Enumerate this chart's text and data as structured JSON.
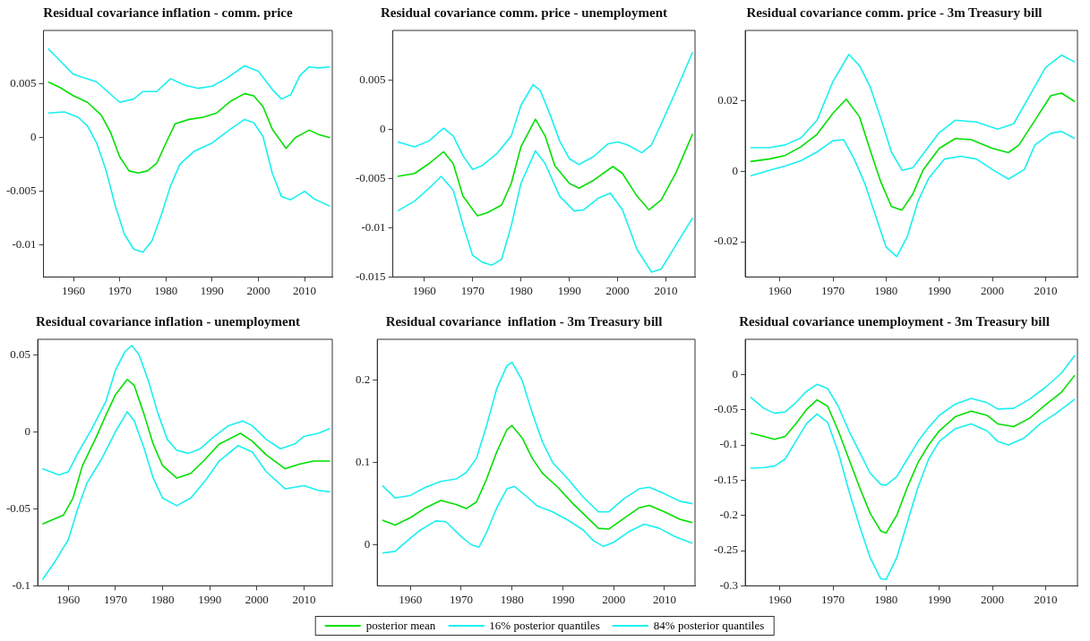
{
  "chart_data": [
    {
      "type": "line",
      "title": "Residual covariance inflation - comm. price",
      "xlim": [
        1953.5,
        2016
      ],
      "xticks": [
        1960,
        1970,
        1980,
        1990,
        2000,
        2010
      ],
      "ylim": [
        -0.013,
        0.01
      ],
      "yticks": [
        -0.01,
        -0.005,
        0,
        0.005
      ],
      "grid": false,
      "marker": "none",
      "line_style": "solid",
      "legend": "bottom",
      "series": [
        {
          "name": "posterior mean",
          "color": "#00e000",
          "x": [
            1954.5,
            1957,
            1960,
            1963,
            1966,
            1968,
            1970,
            1972,
            1974,
            1976,
            1978,
            1980,
            1982,
            1985,
            1988,
            1991,
            1994,
            1997,
            1999,
            2001,
            2003,
            2006,
            2008,
            2011,
            2013,
            2015.5
          ],
          "values": [
            0.0052,
            0.0047,
            0.0039,
            0.0033,
            0.0021,
            0.0005,
            -0.0018,
            -0.0031,
            -0.0033,
            -0.0031,
            -0.0024,
            -0.0005,
            0.0013,
            0.0017,
            0.0019,
            0.0023,
            0.0034,
            0.0041,
            0.0039,
            0.0029,
            0.0008,
            -0.001,
            0,
            0.0007,
            0.0003,
            0
          ]
        },
        {
          "name": "16% posterior quantiles",
          "color": "#19f0f0",
          "x": [
            1954.5,
            1958,
            1961,
            1963,
            1965,
            1967,
            1969,
            1971,
            1973,
            1975,
            1977,
            1979,
            1981,
            1983,
            1986,
            1990,
            1994,
            1997,
            1999,
            2001,
            2003,
            2005,
            2007,
            2010,
            2012,
            2015.5
          ],
          "values": [
            0.0023,
            0.0024,
            0.0019,
            0.0011,
            -0.0005,
            -0.003,
            -0.0063,
            -0.009,
            -0.0104,
            -0.0107,
            -0.0096,
            -0.0072,
            -0.0045,
            -0.0025,
            -0.0013,
            -0.0005,
            0.0008,
            0.0017,
            0.0014,
            0.0001,
            -0.0033,
            -0.0055,
            -0.0058,
            -0.005,
            -0.0057,
            -0.0064
          ]
        },
        {
          "name": "84% posterior quantiles",
          "color": "#19f0f0",
          "x": [
            1954.5,
            1957,
            1960,
            1965,
            1970,
            1973,
            1975,
            1978,
            1981,
            1984,
            1987,
            1990,
            1993,
            1997,
            2000,
            2003,
            2005,
            2007,
            2009,
            2011,
            2013,
            2015.5
          ],
          "values": [
            0.0083,
            0.0072,
            0.0059,
            0.0052,
            0.0033,
            0.0036,
            0.0043,
            0.0043,
            0.0055,
            0.0049,
            0.0046,
            0.0048,
            0.0055,
            0.0067,
            0.0062,
            0.0045,
            0.0036,
            0.004,
            0.0058,
            0.0066,
            0.0065,
            0.0066
          ]
        }
      ]
    },
    {
      "type": "line",
      "title": "Residual covariance comm. price - unemployment",
      "xlim": [
        1953.5,
        2016
      ],
      "xticks": [
        1960,
        1970,
        1980,
        1990,
        2000,
        2010
      ],
      "ylim": [
        -0.015,
        0.01
      ],
      "yticks": [
        -0.015,
        -0.01,
        -0.005,
        0,
        0.005
      ],
      "grid": false,
      "marker": "none",
      "line_style": "solid",
      "series": [
        {
          "color": "#00e000",
          "x": [
            1954.5,
            1958,
            1961,
            1964,
            1966,
            1968,
            1971,
            1973,
            1976,
            1978,
            1980,
            1983,
            1985,
            1987,
            1990,
            1992,
            1995,
            1999,
            2001,
            2004,
            2006.5,
            2009,
            2012,
            2015.5
          ],
          "values": [
            -0.0048,
            -0.0045,
            -0.0035,
            -0.0023,
            -0.0035,
            -0.0068,
            -0.0088,
            -0.0085,
            -0.0077,
            -0.0055,
            -0.0018,
            0.001,
            -0.0007,
            -0.0037,
            -0.0055,
            -0.006,
            -0.0052,
            -0.0038,
            -0.0045,
            -0.0068,
            -0.0082,
            -0.0072,
            -0.0045,
            -0.0005
          ]
        },
        {
          "color": "#19f0f0",
          "x": [
            1954.5,
            1958,
            1961,
            1963.5,
            1966,
            1968,
            1970,
            1972,
            1974,
            1976,
            1978,
            1980,
            1983,
            1985,
            1988,
            1991,
            1993,
            1996,
            1998.5,
            2001,
            2004,
            2007,
            2009,
            2012,
            2015.5
          ],
          "values": [
            -0.0083,
            -0.0073,
            -0.006,
            -0.0048,
            -0.0062,
            -0.0097,
            -0.0128,
            -0.0135,
            -0.0138,
            -0.0132,
            -0.0098,
            -0.0055,
            -0.0022,
            -0.0035,
            -0.0068,
            -0.0083,
            -0.0082,
            -0.007,
            -0.0065,
            -0.0082,
            -0.0122,
            -0.0145,
            -0.0142,
            -0.0118,
            -0.009
          ]
        },
        {
          "color": "#19f0f0",
          "x": [
            1954.5,
            1958,
            1961,
            1964,
            1966,
            1968,
            1970,
            1972,
            1975,
            1978,
            1980,
            1982.5,
            1984,
            1986,
            1988,
            1990,
            1992,
            1995,
            1998,
            2000,
            2002,
            2005,
            2007,
            2009,
            2012,
            2015.5
          ],
          "values": [
            -0.0013,
            -0.0018,
            -0.0012,
            0.0001,
            -0.0007,
            -0.0027,
            -0.0041,
            -0.0037,
            -0.0025,
            -0.0007,
            0.0024,
            0.0045,
            0.0039,
            0.0015,
            -0.0012,
            -0.003,
            -0.0036,
            -0.0028,
            -0.0015,
            -0.0013,
            -0.0016,
            -0.0024,
            -0.0016,
            0.0005,
            0.0038,
            0.0078
          ]
        }
      ]
    },
    {
      "type": "line",
      "title": "Residual covariance comm. price - 3m Treasury bill",
      "xlim": [
        1953.5,
        2016
      ],
      "xticks": [
        1960,
        1970,
        1980,
        1990,
        2000,
        2010
      ],
      "ylim": [
        -0.03,
        0.04
      ],
      "yticks": [
        -0.02,
        0,
        0.02
      ],
      "grid": false,
      "marker": "none",
      "line_style": "solid",
      "series": [
        {
          "color": "#00e000",
          "x": [
            1954.5,
            1958,
            1961,
            1964,
            1967,
            1970,
            1972.5,
            1975,
            1977,
            1979,
            1981,
            1983,
            1985,
            1987,
            1990,
            1993,
            1996,
            2000,
            2003,
            2005,
            2008,
            2011,
            2013,
            2015.5
          ],
          "values": [
            0.0028,
            0.0035,
            0.0045,
            0.007,
            0.0105,
            0.0165,
            0.0205,
            0.0155,
            0.006,
            -0.003,
            -0.01,
            -0.011,
            -0.0065,
            0.0005,
            0.0065,
            0.0093,
            0.009,
            0.0065,
            0.0053,
            0.0075,
            0.0145,
            0.0215,
            0.0222,
            0.0198
          ]
        },
        {
          "color": "#19f0f0",
          "x": [
            1954.5,
            1958,
            1961,
            1964,
            1967,
            1970,
            1972,
            1974,
            1976,
            1978,
            1980,
            1982,
            1984,
            1986,
            1988,
            1991,
            1994,
            1997,
            2000,
            2003,
            2006,
            2008,
            2011,
            2013,
            2015.5
          ],
          "values": [
            -0.0013,
            0.0003,
            0.0015,
            0.003,
            0.0055,
            0.0087,
            0.009,
            0.0035,
            -0.0035,
            -0.0125,
            -0.0215,
            -0.0242,
            -0.0185,
            -0.0085,
            -0.002,
            0.0035,
            0.0043,
            0.0035,
            0.0005,
            -0.0022,
            0.0005,
            0.0075,
            0.0108,
            0.0113,
            0.0093
          ]
        },
        {
          "color": "#19f0f0",
          "x": [
            1954.5,
            1958,
            1961,
            1964,
            1967,
            1970,
            1973,
            1975,
            1977,
            1979,
            1981,
            1983,
            1985,
            1987,
            1990,
            1993,
            1997,
            2001,
            2004,
            2007,
            2010,
            2013,
            2015.5
          ],
          "values": [
            0.0067,
            0.0067,
            0.0075,
            0.0095,
            0.0145,
            0.0255,
            0.0332,
            0.03,
            0.024,
            0.015,
            0.0055,
            0.0003,
            0.001,
            0.005,
            0.011,
            0.0145,
            0.014,
            0.012,
            0.0135,
            0.0215,
            0.0295,
            0.033,
            0.031
          ]
        }
      ]
    },
    {
      "type": "line",
      "title": "Residual covariance inflation - unemployment",
      "xlim": [
        1953.5,
        2016
      ],
      "xticks": [
        1960,
        1970,
        1980,
        1990,
        2000,
        2010
      ],
      "ylim": [
        -0.1,
        0.06
      ],
      "yticks": [
        -0.1,
        -0.05,
        0,
        0.05
      ],
      "grid": false,
      "marker": "none",
      "line_style": "solid",
      "series": [
        {
          "color": "#00e000",
          "x": [
            1954.5,
            1956,
            1959,
            1961,
            1963,
            1966,
            1968,
            1970,
            1972.5,
            1974,
            1976,
            1978,
            1980,
            1983,
            1986,
            1989,
            1992,
            1996.5,
            1999,
            2002,
            2006,
            2009,
            2012,
            2015.5
          ],
          "values": [
            -0.06,
            -0.058,
            -0.054,
            -0.043,
            -0.022,
            -0.003,
            0.011,
            0.024,
            0.034,
            0.03,
            0.012,
            -0.008,
            -0.022,
            -0.03,
            -0.027,
            -0.018,
            -0.008,
            -0.001,
            -0.006,
            -0.015,
            -0.024,
            -0.021,
            -0.019,
            -0.019
          ]
        },
        {
          "color": "#19f0f0",
          "x": [
            1954.5,
            1957,
            1960,
            1962,
            1964,
            1967,
            1970,
            1972.5,
            1974,
            1976,
            1978,
            1980,
            1983,
            1986,
            1989,
            1992,
            1996,
            1999,
            2002,
            2006,
            2010,
            2013,
            2015.5
          ],
          "values": [
            -0.096,
            -0.085,
            -0.07,
            -0.05,
            -0.033,
            -0.018,
            0,
            0.013,
            0.007,
            -0.01,
            -0.03,
            -0.043,
            -0.048,
            -0.043,
            -0.032,
            -0.019,
            -0.009,
            -0.013,
            -0.026,
            -0.037,
            -0.035,
            -0.038,
            -0.039
          ]
        },
        {
          "color": "#19f0f0",
          "x": [
            1954.5,
            1958,
            1960,
            1962,
            1965,
            1968,
            1970,
            1972,
            1973.5,
            1975,
            1977,
            1979,
            1981,
            1983,
            1985.5,
            1988,
            1991,
            1994,
            1997,
            1999,
            2002,
            2005,
            2008,
            2010,
            2013,
            2015.5
          ],
          "values": [
            -0.024,
            -0.028,
            -0.026,
            -0.014,
            0.002,
            0.02,
            0.04,
            0.052,
            0.056,
            0.05,
            0.033,
            0.012,
            -0.005,
            -0.012,
            -0.014,
            -0.011,
            -0.003,
            0.004,
            0.007,
            0.004,
            -0.005,
            -0.011,
            -0.008,
            -0.003,
            -0.001,
            0.002
          ]
        }
      ]
    },
    {
      "type": "line",
      "title": "Residual covariance  inflation - 3m Treasury bill",
      "xlim": [
        1953.5,
        2016
      ],
      "xticks": [
        1960,
        1970,
        1980,
        1990,
        2000,
        2010
      ],
      "ylim": [
        -0.05,
        0.25
      ],
      "yticks": [
        0,
        0.1,
        0.2
      ],
      "grid": false,
      "marker": "none",
      "line_style": "solid",
      "series": [
        {
          "color": "#00e000",
          "x": [
            1954.5,
            1957,
            1960,
            1963,
            1966,
            1969,
            1971,
            1973,
            1975,
            1977,
            1979,
            1980,
            1982,
            1984,
            1986,
            1989,
            1992,
            1995,
            1997,
            1999,
            2002,
            2005,
            2007,
            2010,
            2013,
            2015.5
          ],
          "values": [
            0.03,
            0.024,
            0.033,
            0.045,
            0.054,
            0.049,
            0.044,
            0.052,
            0.08,
            0.113,
            0.14,
            0.145,
            0.13,
            0.105,
            0.087,
            0.07,
            0.05,
            0.032,
            0.02,
            0.019,
            0.032,
            0.045,
            0.048,
            0.04,
            0.031,
            0.027
          ]
        },
        {
          "color": "#19f0f0",
          "x": [
            1954.5,
            1957,
            1960,
            1962,
            1965,
            1967,
            1970,
            1972,
            1973.5,
            1975,
            1977,
            1979,
            1980.5,
            1983,
            1985,
            1988,
            1991,
            1994,
            1996,
            1998,
            2000,
            2003,
            2006,
            2009,
            2012,
            2015.5
          ],
          "values": [
            -0.01,
            -0.008,
            0.008,
            0.018,
            0.029,
            0.028,
            0.01,
            0,
            -0.003,
            0.015,
            0.045,
            0.068,
            0.071,
            0.058,
            0.047,
            0.04,
            0.03,
            0.018,
            0.005,
            -0.002,
            0.003,
            0.016,
            0.025,
            0.02,
            0.01,
            0.002
          ]
        },
        {
          "color": "#19f0f0",
          "x": [
            1954.5,
            1957,
            1960,
            1963,
            1966,
            1969,
            1971,
            1973,
            1975,
            1977,
            1979,
            1980,
            1982,
            1984,
            1986,
            1988,
            1991,
            1994,
            1997,
            1999,
            2002,
            2005,
            2007,
            2010,
            2013,
            2015.5
          ],
          "values": [
            0.072,
            0.057,
            0.06,
            0.07,
            0.077,
            0.08,
            0.088,
            0.105,
            0.145,
            0.19,
            0.218,
            0.222,
            0.2,
            0.16,
            0.125,
            0.1,
            0.08,
            0.058,
            0.04,
            0.04,
            0.056,
            0.068,
            0.07,
            0.062,
            0.053,
            0.05
          ]
        }
      ]
    },
    {
      "type": "line",
      "title": "Residual covariance unemployment - 3m Treasury bill",
      "xlim": [
        1953.5,
        2016
      ],
      "xticks": [
        1960,
        1970,
        1980,
        1990,
        2000,
        2010
      ],
      "ylim": [
        -0.3,
        0.05
      ],
      "yticks": [
        -0.3,
        -0.25,
        -0.2,
        -0.15,
        -0.1,
        -0.05,
        0
      ],
      "grid": false,
      "marker": "none",
      "line_style": "solid",
      "series": [
        {
          "color": "#00e000",
          "x": [
            1954.5,
            1957,
            1959,
            1961,
            1963,
            1965,
            1967,
            1969,
            1971,
            1973,
            1975,
            1977,
            1979,
            1980,
            1982,
            1984,
            1986,
            1988,
            1990,
            1993,
            1996,
            1999,
            2001,
            2004,
            2007,
            2010,
            2013,
            2015.5
          ],
          "values": [
            -0.083,
            -0.088,
            -0.092,
            -0.088,
            -0.07,
            -0.05,
            -0.036,
            -0.045,
            -0.08,
            -0.12,
            -0.16,
            -0.197,
            -0.222,
            -0.225,
            -0.2,
            -0.16,
            -0.125,
            -0.1,
            -0.08,
            -0.06,
            -0.052,
            -0.058,
            -0.07,
            -0.074,
            -0.062,
            -0.043,
            -0.025,
            -0.001
          ]
        },
        {
          "color": "#19f0f0",
          "x": [
            1954.5,
            1957,
            1959,
            1961,
            1963,
            1965,
            1967,
            1969,
            1971,
            1973,
            1975,
            1977,
            1979,
            1980,
            1982,
            1984,
            1986,
            1988,
            1990,
            1993,
            1996,
            1999,
            2001,
            2003,
            2006,
            2009,
            2012,
            2015.5
          ],
          "values": [
            -0.133,
            -0.132,
            -0.13,
            -0.12,
            -0.095,
            -0.07,
            -0.056,
            -0.068,
            -0.11,
            -0.165,
            -0.215,
            -0.26,
            -0.29,
            -0.291,
            -0.26,
            -0.21,
            -0.16,
            -0.12,
            -0.095,
            -0.077,
            -0.07,
            -0.08,
            -0.095,
            -0.1,
            -0.09,
            -0.07,
            -0.055,
            -0.035
          ]
        },
        {
          "color": "#19f0f0",
          "x": [
            1954.5,
            1957,
            1959,
            1961,
            1963,
            1965,
            1967,
            1969,
            1971,
            1973,
            1975,
            1977,
            1979,
            1980,
            1982,
            1984,
            1986,
            1988,
            1990,
            1993,
            1996,
            1999,
            2001,
            2004,
            2007,
            2010,
            2013,
            2015.5
          ],
          "values": [
            -0.032,
            -0.048,
            -0.055,
            -0.053,
            -0.04,
            -0.024,
            -0.014,
            -0.02,
            -0.045,
            -0.08,
            -0.11,
            -0.14,
            -0.156,
            -0.157,
            -0.145,
            -0.12,
            -0.095,
            -0.075,
            -0.058,
            -0.042,
            -0.034,
            -0.04,
            -0.049,
            -0.048,
            -0.035,
            -0.018,
            0.002,
            0.027
          ]
        }
      ]
    }
  ]
}
